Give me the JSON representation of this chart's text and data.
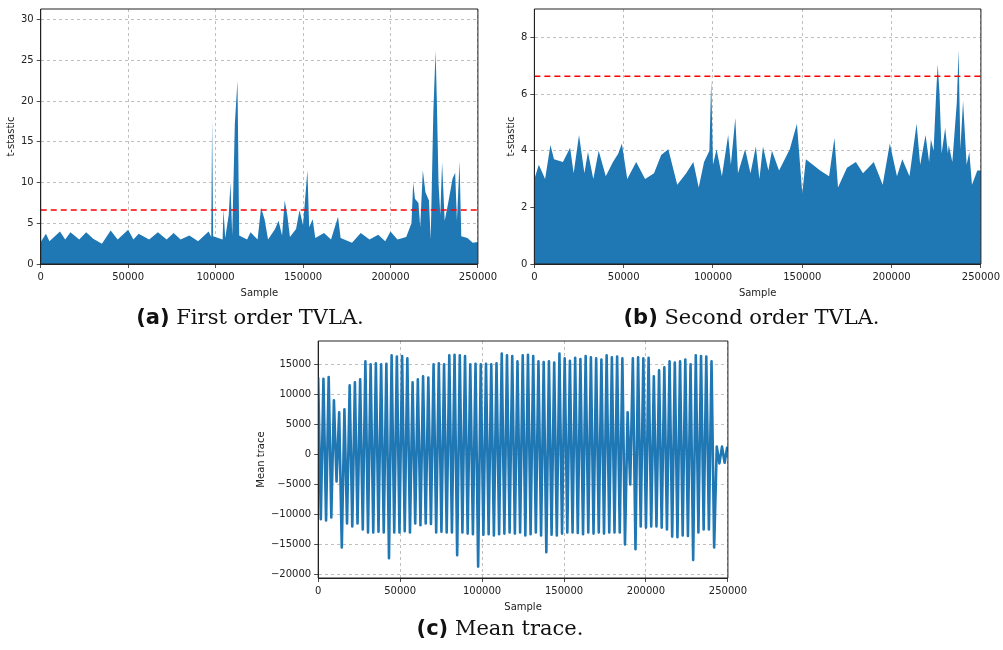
{
  "chart_data": [
    {
      "type": "area",
      "title": "(a) First order TVLA.",
      "xlabel": "Sample",
      "ylabel": "t-stastic",
      "color": "#1f77b4",
      "grid": true,
      "xlim": [
        0,
        250000
      ],
      "xticks": [
        0,
        50000,
        100000,
        150000,
        200000,
        250000
      ],
      "ylim": [
        0,
        31.3
      ],
      "yticks": [
        0,
        5,
        10,
        15,
        20,
        25,
        30
      ],
      "ref_lines": [
        {
          "axis": "y",
          "value": 6.63,
          "color": "#ff0000",
          "line_style": "dashed"
        }
      ],
      "x": [
        0,
        3000,
        5000,
        11000,
        14000,
        17000,
        22000,
        26000,
        30000,
        35000,
        40000,
        44000,
        50000,
        53000,
        56000,
        62000,
        67000,
        72000,
        76000,
        80000,
        85000,
        90000,
        96000,
        97500,
        98000,
        98600,
        104000,
        104500,
        105500,
        107500,
        108500,
        109500,
        111000,
        112500,
        113500,
        118000,
        120000,
        124000,
        126000,
        128000,
        130000,
        134000,
        136000,
        138000,
        139500,
        141000,
        142500,
        146000,
        148000,
        150000,
        152500,
        153500,
        155500,
        157000,
        162000,
        166000,
        170000,
        171500,
        178000,
        183000,
        188000,
        193000,
        197000,
        200000,
        204000,
        209000,
        212000,
        213000,
        214000,
        216000,
        217000,
        218500,
        220000,
        222000,
        223000,
        224500,
        225800,
        226500,
        227500,
        228500,
        229500,
        231000,
        233000,
        235500,
        237000,
        238000,
        239500,
        240500,
        244000,
        247000,
        250000
      ],
      "values": [
        2.7,
        3.7,
        2.8,
        4.0,
        3.0,
        3.9,
        3.0,
        3.9,
        3.1,
        2.5,
        4.1,
        3.0,
        4.2,
        3.0,
        3.7,
        3.0,
        3.9,
        3.0,
        3.8,
        3.0,
        3.5,
        2.8,
        4.0,
        3.3,
        17.8,
        3.4,
        3.0,
        6.7,
        3.2,
        6.0,
        10.0,
        3.5,
        17.2,
        22.5,
        3.5,
        3.0,
        3.9,
        3.0,
        6.9,
        5.5,
        3.0,
        4.3,
        5.3,
        3.5,
        7.8,
        6.0,
        3.3,
        4.3,
        6.6,
        4.8,
        11.5,
        4.5,
        5.5,
        3.2,
        3.8,
        3.0,
        5.8,
        3.2,
        2.6,
        3.8,
        3.0,
        3.6,
        2.8,
        4.0,
        3.0,
        3.3,
        5.0,
        10.0,
        8.0,
        7.5,
        4.5,
        11.5,
        8.8,
        7.8,
        3.0,
        18.6,
        26.2,
        20.2,
        9.8,
        6.0,
        12.5,
        5.3,
        7.5,
        10.5,
        11.2,
        5.3,
        12.6,
        3.4,
        3.2,
        2.6,
        2.7
      ]
    },
    {
      "type": "area",
      "title": "(b) Second order TVLA.",
      "xlabel": "Sample",
      "ylabel": "t-stastic",
      "color": "#1f77b4",
      "grid": true,
      "xlim": [
        0,
        250000
      ],
      "xticks": [
        0,
        50000,
        100000,
        150000,
        200000,
        250000
      ],
      "ylim": [
        0,
        9
      ],
      "yticks": [
        0,
        2,
        4,
        6,
        8
      ],
      "ref_lines": [
        {
          "axis": "y",
          "value": 6.63,
          "color": "#ff0000",
          "line_style": "dashed"
        }
      ],
      "x": [
        0,
        2500,
        6000,
        9000,
        11000,
        16000,
        20000,
        22000,
        25000,
        28000,
        30000,
        33000,
        36000,
        40000,
        44000,
        47000,
        49000,
        52000,
        57000,
        62000,
        67000,
        71000,
        75000,
        80000,
        85000,
        89000,
        92000,
        95000,
        98000,
        99000,
        100000,
        102000,
        105000,
        108500,
        110000,
        112500,
        114000,
        118000,
        121000,
        124000,
        126000,
        128000,
        131000,
        133000,
        137000,
        143000,
        147000,
        149000,
        150000,
        152000,
        160000,
        165000,
        168000,
        170000,
        175000,
        180000,
        184000,
        190000,
        195000,
        199000,
        203000,
        206000,
        210000,
        214000,
        216000,
        219000,
        221000,
        222000,
        223500,
        225000,
        225800,
        226800,
        228000,
        230000,
        231500,
        232000,
        234000,
        236500,
        237500,
        238500,
        240000,
        242000,
        243500,
        245000,
        248000,
        250000
      ],
      "values": [
        3.0,
        3.5,
        3.0,
        4.2,
        3.7,
        3.6,
        4.1,
        3.2,
        4.55,
        3.2,
        3.95,
        3.0,
        4.0,
        3.1,
        3.6,
        3.9,
        4.25,
        3.0,
        3.6,
        3.0,
        3.2,
        3.85,
        4.05,
        2.8,
        3.2,
        3.6,
        2.7,
        3.6,
        4.0,
        6.5,
        3.5,
        4.05,
        3.1,
        4.55,
        3.5,
        5.15,
        3.2,
        4.05,
        3.2,
        4.15,
        3.0,
        4.15,
        3.3,
        4.0,
        3.3,
        4.05,
        4.95,
        3.3,
        2.5,
        3.7,
        3.3,
        3.1,
        4.45,
        2.7,
        3.4,
        3.6,
        3.2,
        3.6,
        2.8,
        4.25,
        3.1,
        3.7,
        3.1,
        4.95,
        3.5,
        4.55,
        3.6,
        4.4,
        4.0,
        6.1,
        7.05,
        6.05,
        3.9,
        4.8,
        3.9,
        4.2,
        3.6,
        5.7,
        7.55,
        4.05,
        5.75,
        3.5,
        3.95,
        2.8,
        3.3,
        3.3
      ]
    },
    {
      "type": "line",
      "title": "(c) Mean trace.",
      "xlabel": "Sample",
      "ylabel": "Mean trace",
      "color": "#1f77b4",
      "grid": true,
      "xlim": [
        0,
        250000
      ],
      "xticks": [
        0,
        50000,
        100000,
        150000,
        200000,
        250000
      ],
      "ylim": [
        -20600,
        18900
      ],
      "yticks": [
        {
          "value": -20000,
          "label": "−20000"
        },
        {
          "value": -15000,
          "label": "−15000"
        },
        {
          "value": -10000,
          "label": "−10000"
        },
        {
          "value": -5000,
          "label": "−5000"
        },
        0,
        5000,
        10000,
        15000
      ],
      "x": [
        0,
        1600,
        3200,
        4800,
        6400,
        8000,
        9600,
        11200,
        12800,
        14400,
        16000,
        17600,
        19200,
        20800,
        22400,
        24000,
        25600,
        27200,
        28800,
        30400,
        32000,
        33600,
        35200,
        36800,
        38400,
        40000,
        41600,
        43200,
        44800,
        46400,
        48000,
        49600,
        51200,
        52800,
        54400,
        56000,
        57600,
        59200,
        60800,
        62400,
        64000,
        65600,
        67200,
        68800,
        70400,
        72000,
        73600,
        75200,
        76800,
        78400,
        80000,
        81600,
        83200,
        84800,
        86400,
        88000,
        89600,
        91200,
        92800,
        94400,
        96000,
        97600,
        99200,
        100800,
        102400,
        104000,
        105600,
        107200,
        108800,
        110400,
        112000,
        113600,
        115200,
        116800,
        118400,
        120000,
        121600,
        123200,
        124800,
        126400,
        128000,
        129600,
        131200,
        132800,
        134400,
        136000,
        137600,
        139200,
        140800,
        142400,
        144000,
        145600,
        147200,
        148800,
        150400,
        152000,
        153600,
        155200,
        156800,
        158400,
        160000,
        161600,
        163200,
        164800,
        166400,
        168000,
        169600,
        171200,
        172800,
        174400,
        176000,
        177600,
        179200,
        180800,
        182400,
        184000,
        185600,
        187200,
        188800,
        190400,
        192000,
        193600,
        195200,
        196800,
        198400,
        200000,
        201600,
        203200,
        204800,
        206400,
        208000,
        209600,
        211200,
        212800,
        214400,
        216000,
        217600,
        219200,
        220800,
        222400,
        224000,
        225600,
        227200,
        228800,
        230400,
        232000,
        233600,
        235200,
        236800,
        238400,
        240000,
        241600,
        243200,
        244800,
        246400,
        248000,
        249600
      ],
      "values": [
        12800,
        -10800,
        12600,
        -11000,
        12900,
        -10500,
        9000,
        -4500,
        7000,
        -15500,
        7500,
        -11500,
        11500,
        -12000,
        12000,
        -11500,
        12500,
        -12500,
        15500,
        -13000,
        15000,
        -13000,
        15200,
        -12900,
        15000,
        -13000,
        15100,
        -17300,
        16500,
        -13000,
        16300,
        -13000,
        16400,
        -12800,
        16000,
        -13000,
        12000,
        -11500,
        12500,
        -11800,
        13000,
        -11500,
        12800,
        -11600,
        15000,
        -13000,
        15200,
        -12900,
        15000,
        -13000,
        16500,
        -13000,
        16600,
        -16800,
        16500,
        -13000,
        16400,
        -13200,
        15000,
        -13300,
        15100,
        -18700,
        15000,
        -13400,
        15100,
        -13300,
        15000,
        -13500,
        15200,
        -13300,
        16800,
        -13200,
        16500,
        -13000,
        16400,
        -13200,
        15500,
        -13000,
        16500,
        -13500,
        16600,
        -13300,
        16400,
        -13000,
        15500,
        -13500,
        15400,
        -16300,
        15500,
        -13400,
        15300,
        -13500,
        16800,
        -13200,
        16000,
        -13000,
        15600,
        -13000,
        16100,
        -13100,
        15900,
        -13300,
        16400,
        -13000,
        16200,
        -13200,
        16000,
        -13000,
        15800,
        -13200,
        16500,
        -13000,
        16200,
        -13000,
        16300,
        -13000,
        16000,
        -15000,
        7000,
        -5000,
        16000,
        -15800,
        16200,
        -12000,
        16000,
        -12200,
        16100,
        -12000,
        13000,
        -12000,
        14000,
        -12200,
        14500,
        -12500,
        15500,
        -13700,
        15300,
        -13800,
        15500,
        -13500,
        15800,
        -13600,
        15000,
        -17600,
        16500,
        -13000,
        16400,
        -12500,
        16300,
        -12500,
        15500,
        -15500,
        1300,
        -1500,
        1300,
        -1400,
        1300
      ]
    }
  ]
}
